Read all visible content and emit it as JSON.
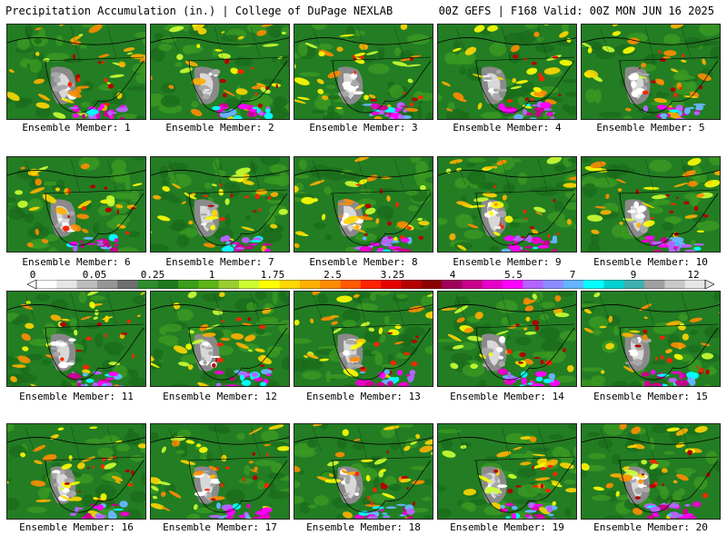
{
  "header": {
    "left": "Precipitation Accumulation (in.) | College of DuPage NEXLAB",
    "right": "00Z GEFS | F168 Valid: 00Z MON JUN 16 2025"
  },
  "colorbar": {
    "labels": [
      "0",
      "0.05",
      "0.25",
      "1",
      "1.75",
      "2.5",
      "3.25",
      "4",
      "5.5",
      "7",
      "9",
      "12"
    ],
    "colors": [
      "#ffffff",
      "#e6e6e6",
      "#bdbdbd",
      "#969696",
      "#6e6e6e",
      "#2e8b2e",
      "#1f7a1f",
      "#3c9d1a",
      "#5cb31a",
      "#9acd32",
      "#ccff33",
      "#ffff00",
      "#ffd700",
      "#ffb000",
      "#ff8c00",
      "#ff5a00",
      "#ff2400",
      "#e60000",
      "#b40000",
      "#8b0000",
      "#a0005a",
      "#c8008c",
      "#e600c8",
      "#ff00ff",
      "#b464ff",
      "#8c8cff",
      "#64b4ff",
      "#00ffff",
      "#00d2d2",
      "#40b0b0",
      "#a0a0a0",
      "#c8c8c8",
      "#e6e6e6"
    ]
  },
  "members": [
    {
      "label": "Ensemble Member: 1"
    },
    {
      "label": "Ensemble Member: 2"
    },
    {
      "label": "Ensemble Member: 3"
    },
    {
      "label": "Ensemble Member: 4"
    },
    {
      "label": "Ensemble Member: 5"
    },
    {
      "label": "Ensemble Member: 6"
    },
    {
      "label": "Ensemble Member: 7"
    },
    {
      "label": "Ensemble Member: 8"
    },
    {
      "label": "Ensemble Member: 9"
    },
    {
      "label": "Ensemble Member: 10"
    },
    {
      "label": "Ensemble Member: 11"
    },
    {
      "label": "Ensemble Member: 12"
    },
    {
      "label": "Ensemble Member: 13"
    },
    {
      "label": "Ensemble Member: 14"
    },
    {
      "label": "Ensemble Member: 15"
    },
    {
      "label": "Ensemble Member: 16"
    },
    {
      "label": "Ensemble Member: 17"
    },
    {
      "label": "Ensemble Member: 18"
    },
    {
      "label": "Ensemble Member: 19"
    },
    {
      "label": "Ensemble Member: 20"
    }
  ]
}
